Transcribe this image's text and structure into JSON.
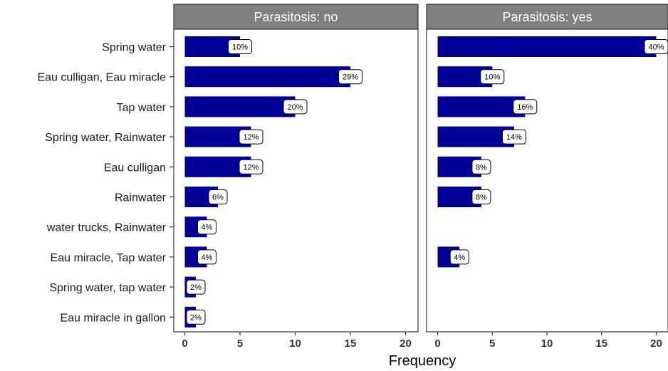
{
  "chart_data": {
    "type": "bar",
    "orientation": "horizontal",
    "xlabel": "Frequency",
    "ylabel": "",
    "xlim": [
      0,
      20
    ],
    "xticks": [
      0,
      5,
      10,
      15,
      20
    ],
    "grid": false,
    "bar_color": "#000099",
    "strip_color": "#7f7f7f",
    "categories": [
      "Spring water",
      "Eau culligan, Eau miracle",
      "Tap water",
      "Spring water, Rainwater",
      "Eau culligan",
      "Rainwater",
      "water trucks, Rainwater",
      "Eau miracle, Tap water",
      "Spring water, tap water",
      "Eau miracle in gallon"
    ],
    "panels": [
      {
        "title": "Parasitosis: no",
        "values": [
          5,
          15,
          10,
          6,
          6,
          3,
          2,
          2,
          1,
          1
        ],
        "labels": [
          "10%",
          "29%",
          "20%",
          "12%",
          "12%",
          "6%",
          "4%",
          "4%",
          "2%",
          "2%"
        ]
      },
      {
        "title": "Parasitosis: yes",
        "values": [
          20,
          5,
          8,
          7,
          4,
          4,
          null,
          2,
          null,
          null
        ],
        "labels": [
          "40%",
          "10%",
          "16%",
          "14%",
          "8%",
          "8%",
          "",
          "4%",
          "",
          ""
        ]
      }
    ]
  }
}
